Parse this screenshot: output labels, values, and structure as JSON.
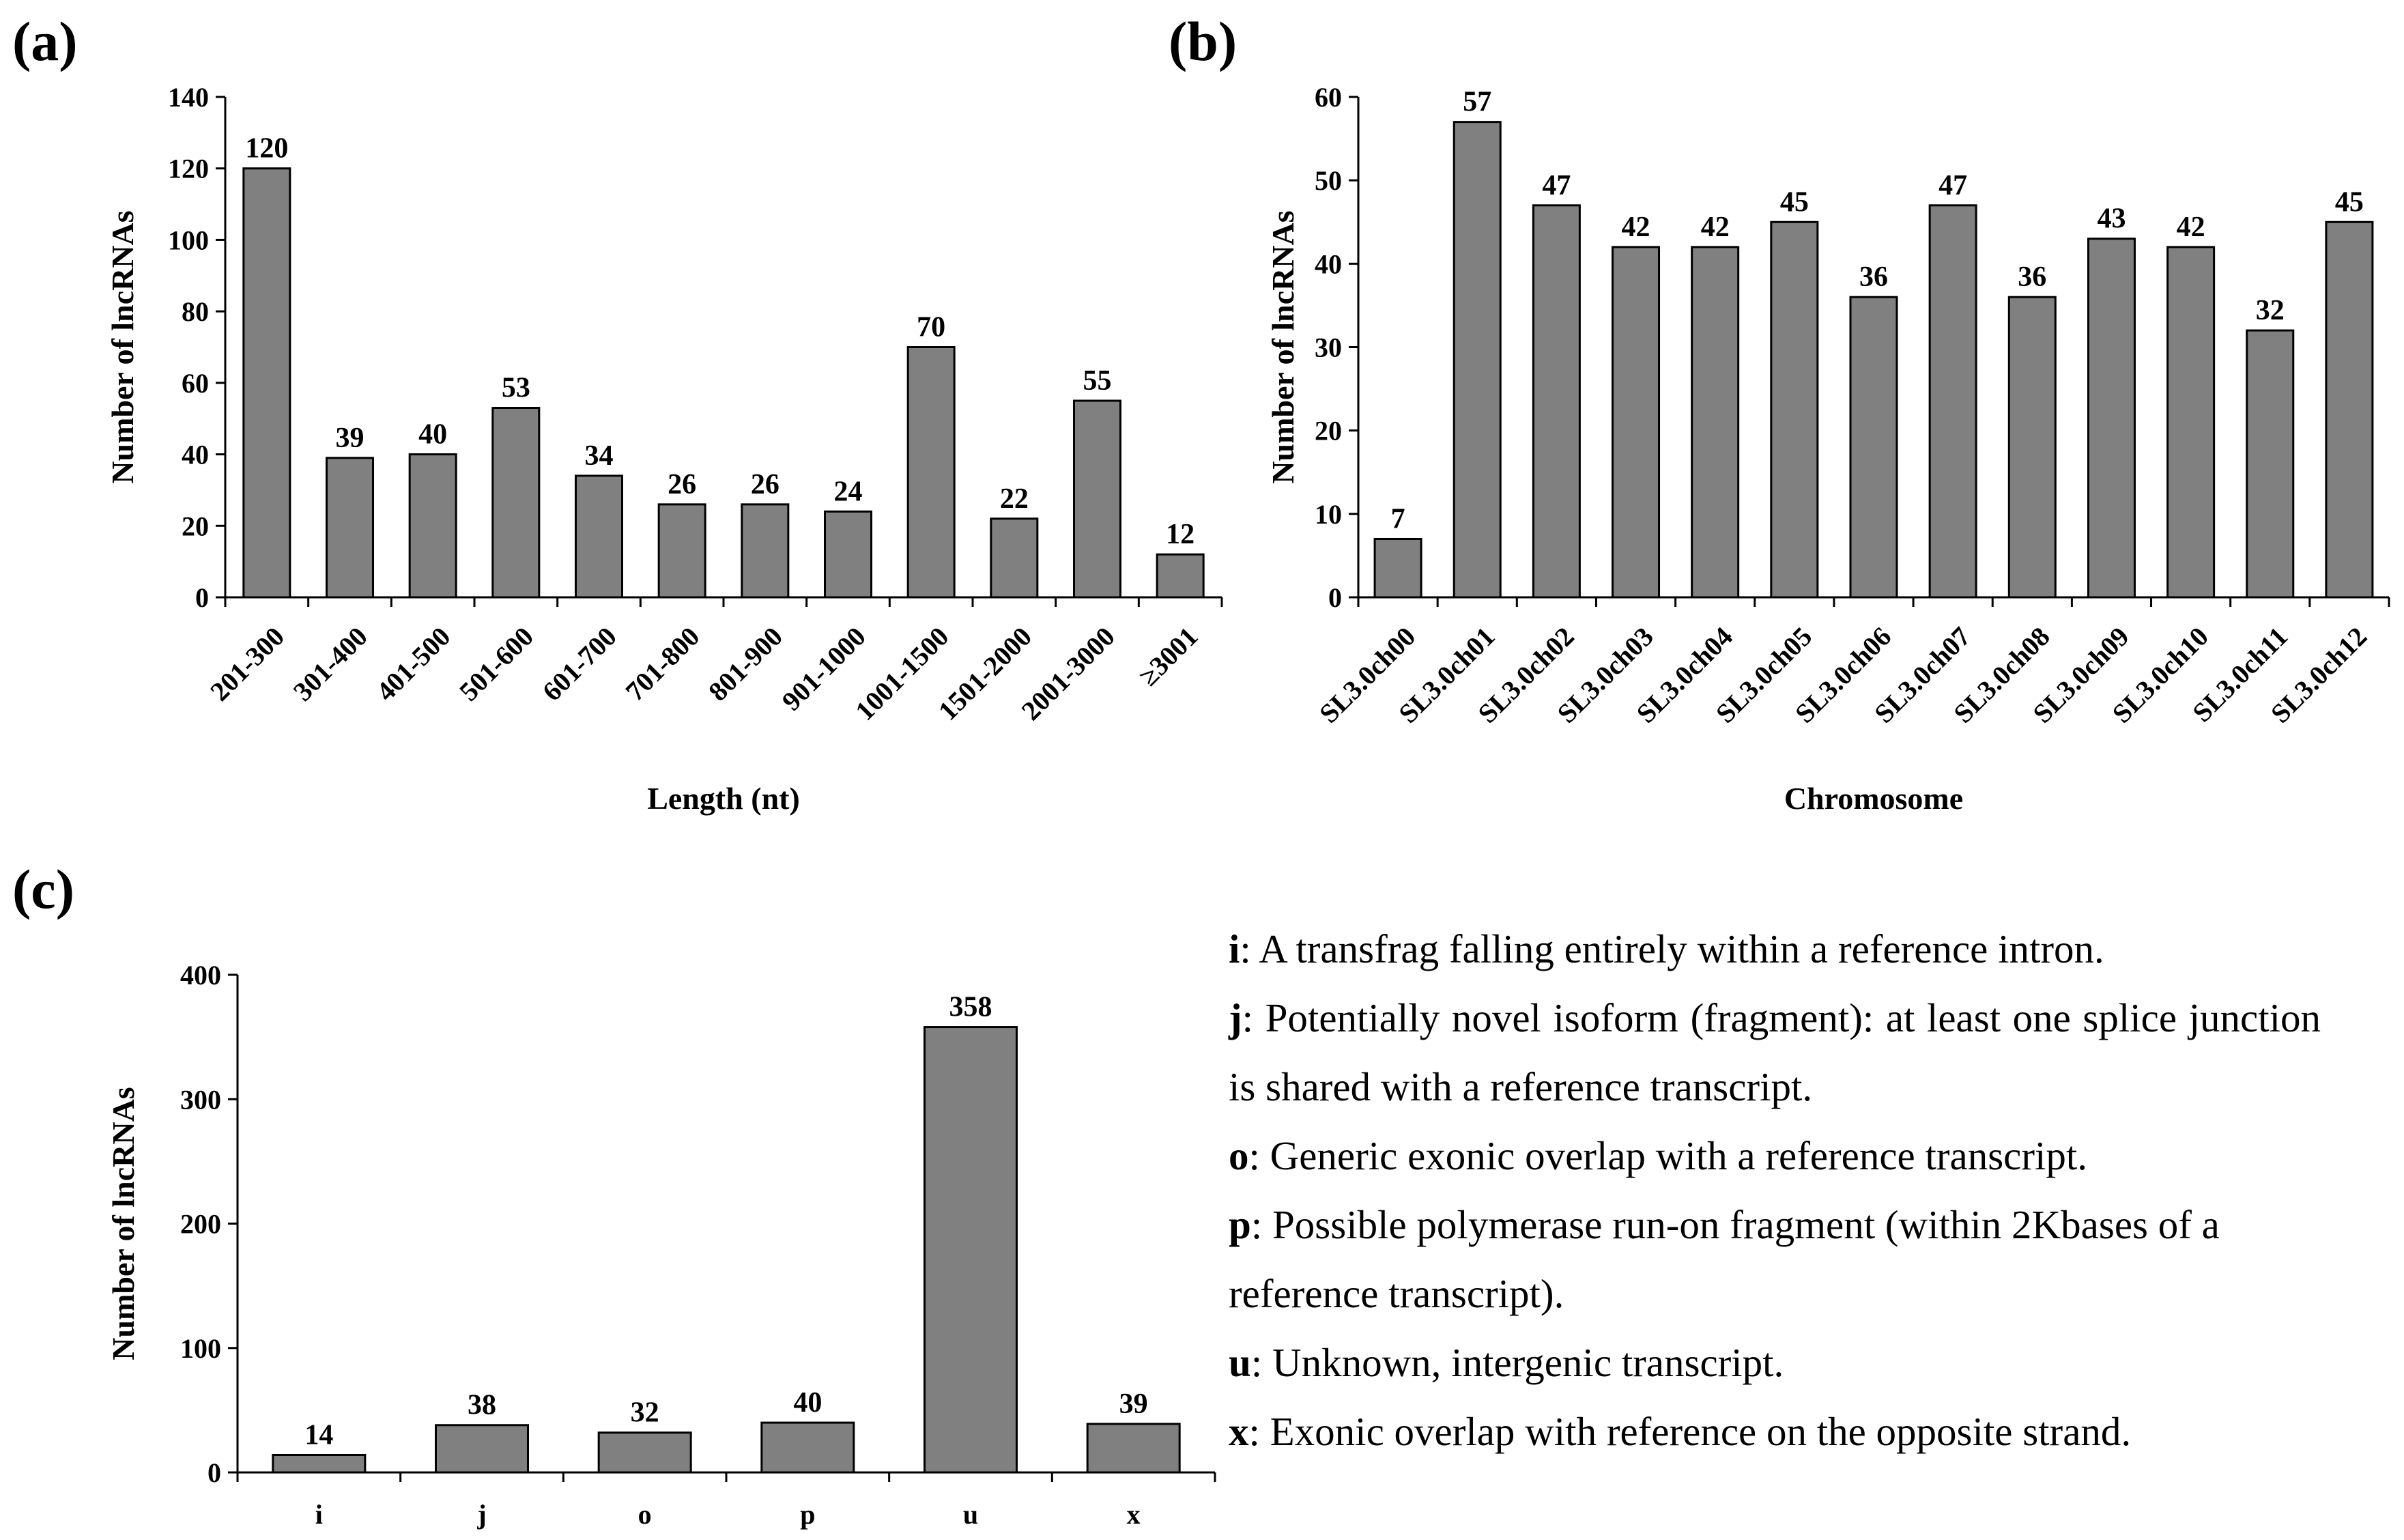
{
  "chart_data": [
    {
      "panel": "(a)",
      "type": "bar",
      "categories": [
        "201-300",
        "301-400",
        "401-500",
        "501-600",
        "601-700",
        "701-800",
        "801-900",
        "901-1000",
        "1001-1500",
        "1501-2000",
        "2001-3000",
        "≥3001"
      ],
      "values": [
        120,
        39,
        40,
        53,
        34,
        26,
        26,
        24,
        70,
        22,
        55,
        12
      ],
      "xlabel": "Length (nt)",
      "ylabel": "Number of lncRNAs",
      "ylim": [
        0,
        140
      ],
      "yticks": [
        0,
        20,
        40,
        60,
        80,
        100,
        120,
        140
      ],
      "bar_color": "#808080",
      "grid": false
    },
    {
      "panel": "(b)",
      "type": "bar",
      "categories": [
        "SL3.0ch00",
        "SL3.0ch01",
        "SL3.0ch02",
        "SL3.0ch03",
        "SL3.0ch04",
        "SL3.0ch05",
        "SL3.0ch06",
        "SL3.0ch07",
        "SL3.0ch08",
        "SL3.0ch09",
        "SL3.0ch10",
        "SL3.0ch11",
        "SL3.0ch12"
      ],
      "values": [
        7,
        57,
        47,
        42,
        42,
        45,
        36,
        47,
        36,
        43,
        42,
        32,
        45
      ],
      "xlabel": "Chromosome",
      "ylabel": "Number of lncRNAs",
      "ylim": [
        0,
        60
      ],
      "yticks": [
        0,
        10,
        20,
        30,
        40,
        50,
        60
      ],
      "bar_color": "#808080",
      "grid": false
    },
    {
      "panel": "(c)",
      "type": "bar",
      "categories": [
        "i",
        "j",
        "o",
        "p",
        "u",
        "x"
      ],
      "values": [
        14,
        38,
        32,
        40,
        358,
        39
      ],
      "xlabel": "",
      "ylabel": "Number of lncRNAs",
      "ylim": [
        0,
        400
      ],
      "yticks": [
        0,
        100,
        200,
        300,
        400
      ],
      "bar_color": "#808080",
      "grid": false
    }
  ],
  "legend": [
    {
      "key": "i",
      "text": ": A transfrag falling entirely within a reference intron."
    },
    {
      "key": "j",
      "text": ":  Potentially  novel  isoform  (fragment):  at  least  one splice junction is shared with a reference transcript."
    },
    {
      "key": "o",
      "text": ": Generic exonic overlap with a reference transcript."
    },
    {
      "key": "p",
      "text": ": Possible polymerase run-on fragment (within 2Kbases of a reference transcript)."
    },
    {
      "key": "u",
      "text": ": Unknown, intergenic transcript."
    },
    {
      "key": "x",
      "text": ": Exonic overlap with reference on the opposite strand."
    }
  ]
}
